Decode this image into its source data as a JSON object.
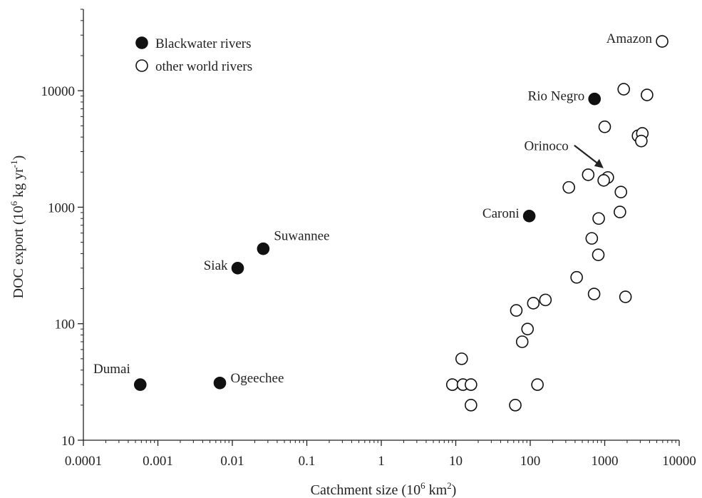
{
  "chart_data": {
    "type": "scatter",
    "xscale": "log",
    "yscale": "log",
    "xlim": [
      0.0001,
      10000
    ],
    "ylim": [
      10,
      50000
    ],
    "x_ticks": [
      "0.0001",
      "0.001",
      "0.01",
      "0.1",
      "1",
      "10",
      "100",
      "1000",
      "10000"
    ],
    "y_ticks": [
      "10",
      "100",
      "1000",
      "10000"
    ],
    "xlabel": {
      "main": "Catchment size (10",
      "exp1": "6",
      "mid": " km",
      "exp2": "2",
      "end": ")"
    },
    "ylabel": {
      "main": "DOC export (10",
      "exp1": "6",
      "mid": " kg yr",
      "exp2": "-1",
      "end": ")"
    },
    "legend": {
      "position": "top-left",
      "entries": [
        {
          "label": "Blackwater rivers",
          "marker": "filled"
        },
        {
          "label": "other world rivers",
          "marker": "open"
        }
      ]
    },
    "series": [
      {
        "name": "Blackwater rivers",
        "marker": "filled",
        "points": [
          {
            "x": 0.00058,
            "y": 30,
            "label": "Dumai",
            "label_pos": "above-left"
          },
          {
            "x": 0.0068,
            "y": 31,
            "label": "Ogeechee",
            "label_pos": "right"
          },
          {
            "x": 0.0118,
            "y": 300,
            "label": "Siak",
            "label_pos": "left"
          },
          {
            "x": 0.026,
            "y": 440,
            "label": "Suwannee",
            "label_pos": "above-right"
          },
          {
            "x": 97,
            "y": 840,
            "label": "Caroni",
            "label_pos": "left"
          },
          {
            "x": 730,
            "y": 8500,
            "label": "Rio Negro",
            "label_pos": "left"
          }
        ]
      },
      {
        "name": "other world rivers",
        "marker": "open",
        "points": [
          {
            "x": 5900,
            "y": 26500,
            "label": "Amazon",
            "label_pos": "left"
          },
          {
            "x": 1800,
            "y": 10300
          },
          {
            "x": 3700,
            "y": 9200
          },
          {
            "x": 1000,
            "y": 4900
          },
          {
            "x": 2800,
            "y": 4100
          },
          {
            "x": 3200,
            "y": 4300
          },
          {
            "x": 3100,
            "y": 3700
          },
          {
            "x": 1100,
            "y": 1800,
            "label": "Orinoco",
            "label_pos": "arrow-upper-left"
          },
          {
            "x": 600,
            "y": 1900
          },
          {
            "x": 970,
            "y": 1700
          },
          {
            "x": 330,
            "y": 1480
          },
          {
            "x": 1650,
            "y": 1350
          },
          {
            "x": 1600,
            "y": 910
          },
          {
            "x": 830,
            "y": 800
          },
          {
            "x": 670,
            "y": 540
          },
          {
            "x": 820,
            "y": 390
          },
          {
            "x": 420,
            "y": 250
          },
          {
            "x": 720,
            "y": 180
          },
          {
            "x": 1900,
            "y": 170
          },
          {
            "x": 160,
            "y": 160
          },
          {
            "x": 110,
            "y": 150
          },
          {
            "x": 65,
            "y": 130
          },
          {
            "x": 92,
            "y": 90
          },
          {
            "x": 78,
            "y": 70
          },
          {
            "x": 12,
            "y": 50
          },
          {
            "x": 9,
            "y": 30
          },
          {
            "x": 12.5,
            "y": 30
          },
          {
            "x": 16,
            "y": 30
          },
          {
            "x": 125,
            "y": 30
          },
          {
            "x": 16,
            "y": 20
          },
          {
            "x": 63,
            "y": 20
          }
        ]
      }
    ]
  }
}
